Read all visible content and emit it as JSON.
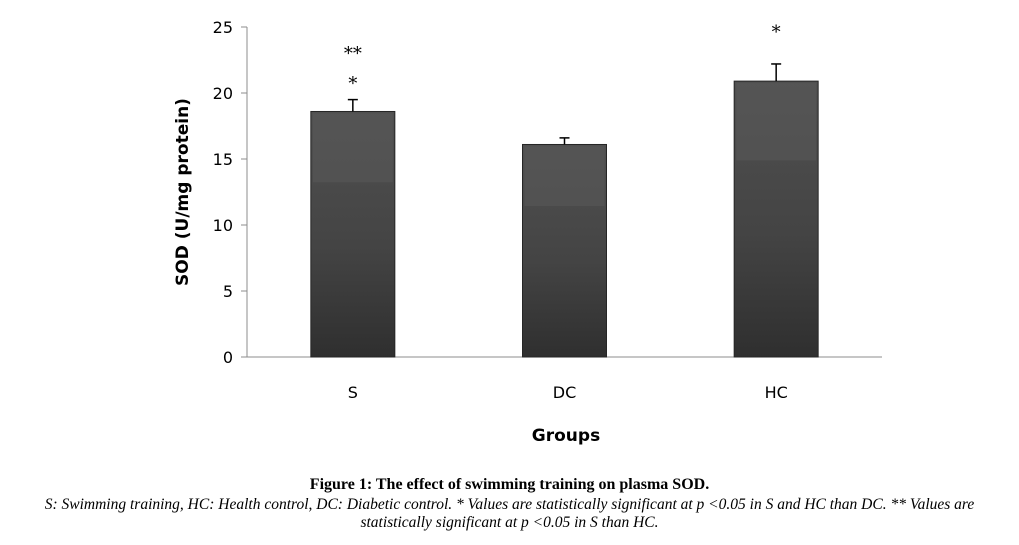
{
  "chart_data": {
    "type": "bar",
    "categories": [
      "S",
      "DC",
      "HC"
    ],
    "values": [
      18.6,
      16.1,
      20.9
    ],
    "errors": [
      0.9,
      0.5,
      1.3
    ],
    "significance": [
      "**\n*",
      "",
      "*"
    ],
    "xlabel": "Groups",
    "ylabel": "SOD (U/mg protein)",
    "ylim": [
      0,
      25
    ],
    "yticks": [
      "0",
      "5",
      "10",
      "15",
      "20",
      "25"
    ],
    "bar_color": "#3c3c3c",
    "grid": false,
    "legend": "none"
  },
  "caption": {
    "title": "Figure 1: The effect of swimming training on plasma SOD.",
    "body": "S: Swimming training, HC: Health control, DC: Diabetic control. * Values are statistically significant at p <0.05 in S and HC than DC. ** Values are statistically significant at p <0.05 in S than HC."
  }
}
